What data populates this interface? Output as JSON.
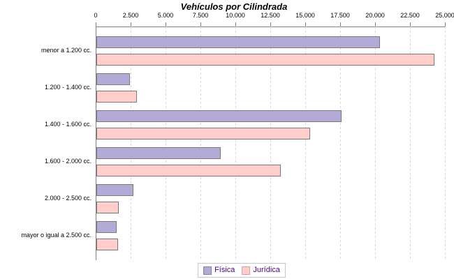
{
  "title": "Vehículos por Cilindrada",
  "colors": {
    "fisica_fill": "#b4aad6",
    "fisica_border": "#7a7a7e",
    "juridica_fill": "#ffcecb",
    "juridica_border": "#7a7a7e",
    "axis_line": "#808080",
    "gridline": "#d7d7d7",
    "legend_text": "#4b0082",
    "title_text": "#000000"
  },
  "chart_data": {
    "type": "bar",
    "orientation": "horizontal",
    "title": "Vehículos por Cilindrada",
    "categories": [
      "menor a 1.200 cc.",
      "1.200 - 1.400 cc.",
      "1.400 - 1.600 cc.",
      "1.600 - 2.000 cc.",
      "2.000 - 2.500 cc.",
      "mayor o igual a 2.500 cc."
    ],
    "series": [
      {
        "name": "Física",
        "values": [
          20200,
          2300,
          17450,
          8800,
          2550,
          1350
        ]
      },
      {
        "name": "Jurídica",
        "values": [
          24100,
          2800,
          15200,
          13100,
          1500,
          1450
        ]
      }
    ],
    "value_axis": {
      "position": "top",
      "min": 0,
      "max": 25000,
      "step": 2500,
      "tick_labels": [
        "0",
        "2.500",
        "5.000",
        "7.500",
        "10.000",
        "12.500",
        "15.000",
        "17.500",
        "20.000",
        "22.500",
        "25.000"
      ]
    },
    "grid": true,
    "grid_style": "dashed-vertical",
    "legend_position": "bottom"
  }
}
